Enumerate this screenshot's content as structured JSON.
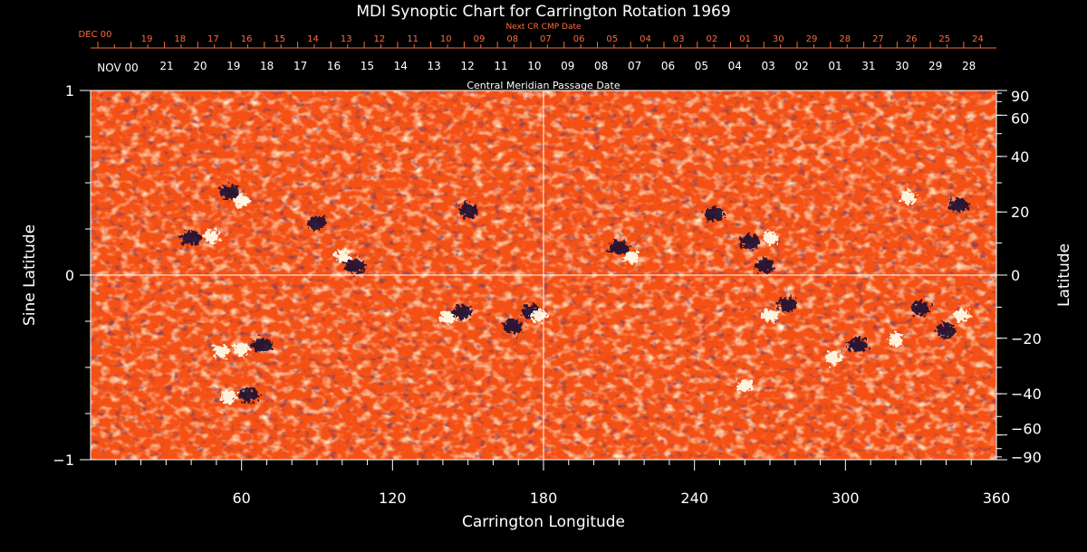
{
  "chart_data": {
    "type": "heatmap",
    "title": "MDI Synoptic Chart for Carrington Rotation 1969",
    "xlabel": "Carrington Longitude",
    "ylabel_left": "Sine Latitude",
    "ylabel_right": "Latitude",
    "xlim": [
      0,
      360
    ],
    "ylim": [
      -1,
      1
    ],
    "x_ticks": [
      60,
      120,
      180,
      240,
      300,
      360
    ],
    "x_tick_labels": [
      "60",
      "120",
      "180",
      "240",
      "300",
      "360"
    ],
    "left_ticks": [
      1,
      0,
      -1
    ],
    "left_tick_labels": [
      "1",
      "0",
      "−1"
    ],
    "right_ticks_deg": [
      90,
      60,
      40,
      20,
      0,
      -20,
      -40,
      -60,
      -90
    ],
    "right_tick_labels": [
      "90",
      "60",
      "40",
      "20",
      "0",
      "−20",
      "−40",
      "−60",
      "−90"
    ],
    "grid_lines": {
      "longitude": 180,
      "sine_latitude": 0
    },
    "top_axis_label": "Central Meridian Passage Date",
    "top_axis_dates": [
      "21",
      "20",
      "19",
      "18",
      "17",
      "16",
      "15",
      "14",
      "13",
      "12",
      "11",
      "10",
      "09",
      "08",
      "07",
      "06",
      "05",
      "04",
      "03",
      "02",
      "01",
      "31",
      "30",
      "29",
      "28"
    ],
    "top_axis_start": "NOV 00",
    "next_axis_label": "Next CR CMP Date",
    "next_axis_dates": [
      "19",
      "18",
      "17",
      "16",
      "15",
      "14",
      "13",
      "12",
      "11",
      "10",
      "09",
      "08",
      "07",
      "06",
      "05",
      "04",
      "03",
      "02",
      "01",
      "30",
      "29",
      "28",
      "27",
      "26",
      "25",
      "24"
    ],
    "next_axis_start": "DEC 00",
    "colors": {
      "background": "#000000",
      "field_base": "#ff5a1a",
      "positive_polarity": "#fffbe8",
      "negative_polarity": "#1a0a33",
      "text": "#ffffff",
      "next_axis_text": "#ff6a3c"
    },
    "active_regions": [
      {
        "lon": 40,
        "sinlat": 0.2,
        "polarity": "negative"
      },
      {
        "lon": 48,
        "sinlat": 0.21,
        "polarity": "positive"
      },
      {
        "lon": 55,
        "sinlat": 0.45,
        "polarity": "negative"
      },
      {
        "lon": 60,
        "sinlat": 0.4,
        "polarity": "positive"
      },
      {
        "lon": 90,
        "sinlat": 0.28,
        "polarity": "negative"
      },
      {
        "lon": 100,
        "sinlat": 0.1,
        "polarity": "positive"
      },
      {
        "lon": 105,
        "sinlat": 0.05,
        "polarity": "negative"
      },
      {
        "lon": 150,
        "sinlat": 0.35,
        "polarity": "negative"
      },
      {
        "lon": 210,
        "sinlat": 0.15,
        "polarity": "negative"
      },
      {
        "lon": 215,
        "sinlat": 0.1,
        "polarity": "positive"
      },
      {
        "lon": 248,
        "sinlat": 0.33,
        "polarity": "negative"
      },
      {
        "lon": 262,
        "sinlat": 0.18,
        "polarity": "negative"
      },
      {
        "lon": 270,
        "sinlat": 0.2,
        "polarity": "positive"
      },
      {
        "lon": 268,
        "sinlat": 0.05,
        "polarity": "negative"
      },
      {
        "lon": 52,
        "sinlat": -0.41,
        "polarity": "positive"
      },
      {
        "lon": 60,
        "sinlat": -0.4,
        "polarity": "positive"
      },
      {
        "lon": 68,
        "sinlat": -0.38,
        "polarity": "negative"
      },
      {
        "lon": 63,
        "sinlat": -0.65,
        "polarity": "negative"
      },
      {
        "lon": 55,
        "sinlat": -0.66,
        "polarity": "positive"
      },
      {
        "lon": 142,
        "sinlat": -0.23,
        "polarity": "positive"
      },
      {
        "lon": 148,
        "sinlat": -0.2,
        "polarity": "negative"
      },
      {
        "lon": 168,
        "sinlat": -0.28,
        "polarity": "negative"
      },
      {
        "lon": 175,
        "sinlat": -0.2,
        "polarity": "negative"
      },
      {
        "lon": 178,
        "sinlat": -0.22,
        "polarity": "positive"
      },
      {
        "lon": 277,
        "sinlat": -0.16,
        "polarity": "negative"
      },
      {
        "lon": 270,
        "sinlat": -0.22,
        "polarity": "positive"
      },
      {
        "lon": 295,
        "sinlat": -0.45,
        "polarity": "positive"
      },
      {
        "lon": 305,
        "sinlat": -0.38,
        "polarity": "negative"
      },
      {
        "lon": 320,
        "sinlat": -0.35,
        "polarity": "positive"
      },
      {
        "lon": 330,
        "sinlat": -0.18,
        "polarity": "negative"
      },
      {
        "lon": 340,
        "sinlat": -0.3,
        "polarity": "negative"
      },
      {
        "lon": 346,
        "sinlat": -0.22,
        "polarity": "positive"
      },
      {
        "lon": 260,
        "sinlat": -0.6,
        "polarity": "positive"
      },
      {
        "lon": 325,
        "sinlat": 0.42,
        "polarity": "positive"
      },
      {
        "lon": 345,
        "sinlat": 0.38,
        "polarity": "negative"
      }
    ]
  }
}
